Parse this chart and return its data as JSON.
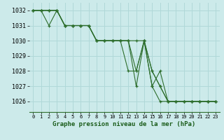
{
  "title": "Graphe pression niveau de la mer (hPa)",
  "bg_color": "#cceaea",
  "grid_color": "#b0d8d8",
  "line_color": "#2d6e2d",
  "xlim": [
    -0.5,
    23.5
  ],
  "ylim": [
    1025.3,
    1032.5
  ],
  "yticks": [
    1026,
    1027,
    1028,
    1029,
    1030,
    1031,
    1032
  ],
  "xticks": [
    0,
    1,
    2,
    3,
    4,
    5,
    6,
    7,
    8,
    9,
    10,
    11,
    12,
    13,
    14,
    15,
    16,
    17,
    18,
    19,
    20,
    21,
    22,
    23
  ],
  "series": [
    [
      1032,
      1032,
      1032,
      1032,
      1031,
      1031,
      1031,
      1031,
      1030,
      1030,
      1030,
      1030,
      1030,
      1030,
      1030,
      1028,
      1027,
      1026,
      1026,
      1026,
      1026,
      1026,
      1026,
      1026
    ],
    [
      1032,
      1032,
      1031,
      1032,
      1031,
      1031,
      1031,
      1031,
      1030,
      1030,
      1030,
      1030,
      1028,
      1028,
      1030,
      1028,
      1027,
      1026,
      1026,
      1026,
      1026,
      1026,
      1026,
      1026
    ],
    [
      1032,
      1032,
      1032,
      1032,
      1031,
      1031,
      1031,
      1031,
      1030,
      1030,
      1030,
      1030,
      1030,
      1028,
      1030,
      1027,
      1028,
      1026,
      1026,
      1026,
      1026,
      1026,
      1026,
      1026
    ],
    [
      1032,
      1032,
      1032,
      1032,
      1031,
      1031,
      1031,
      1031,
      1030,
      1030,
      1030,
      1030,
      1030,
      1027,
      1030,
      1027,
      1026,
      1026,
      1026,
      1026,
      1026,
      1026,
      1026,
      1026
    ]
  ]
}
